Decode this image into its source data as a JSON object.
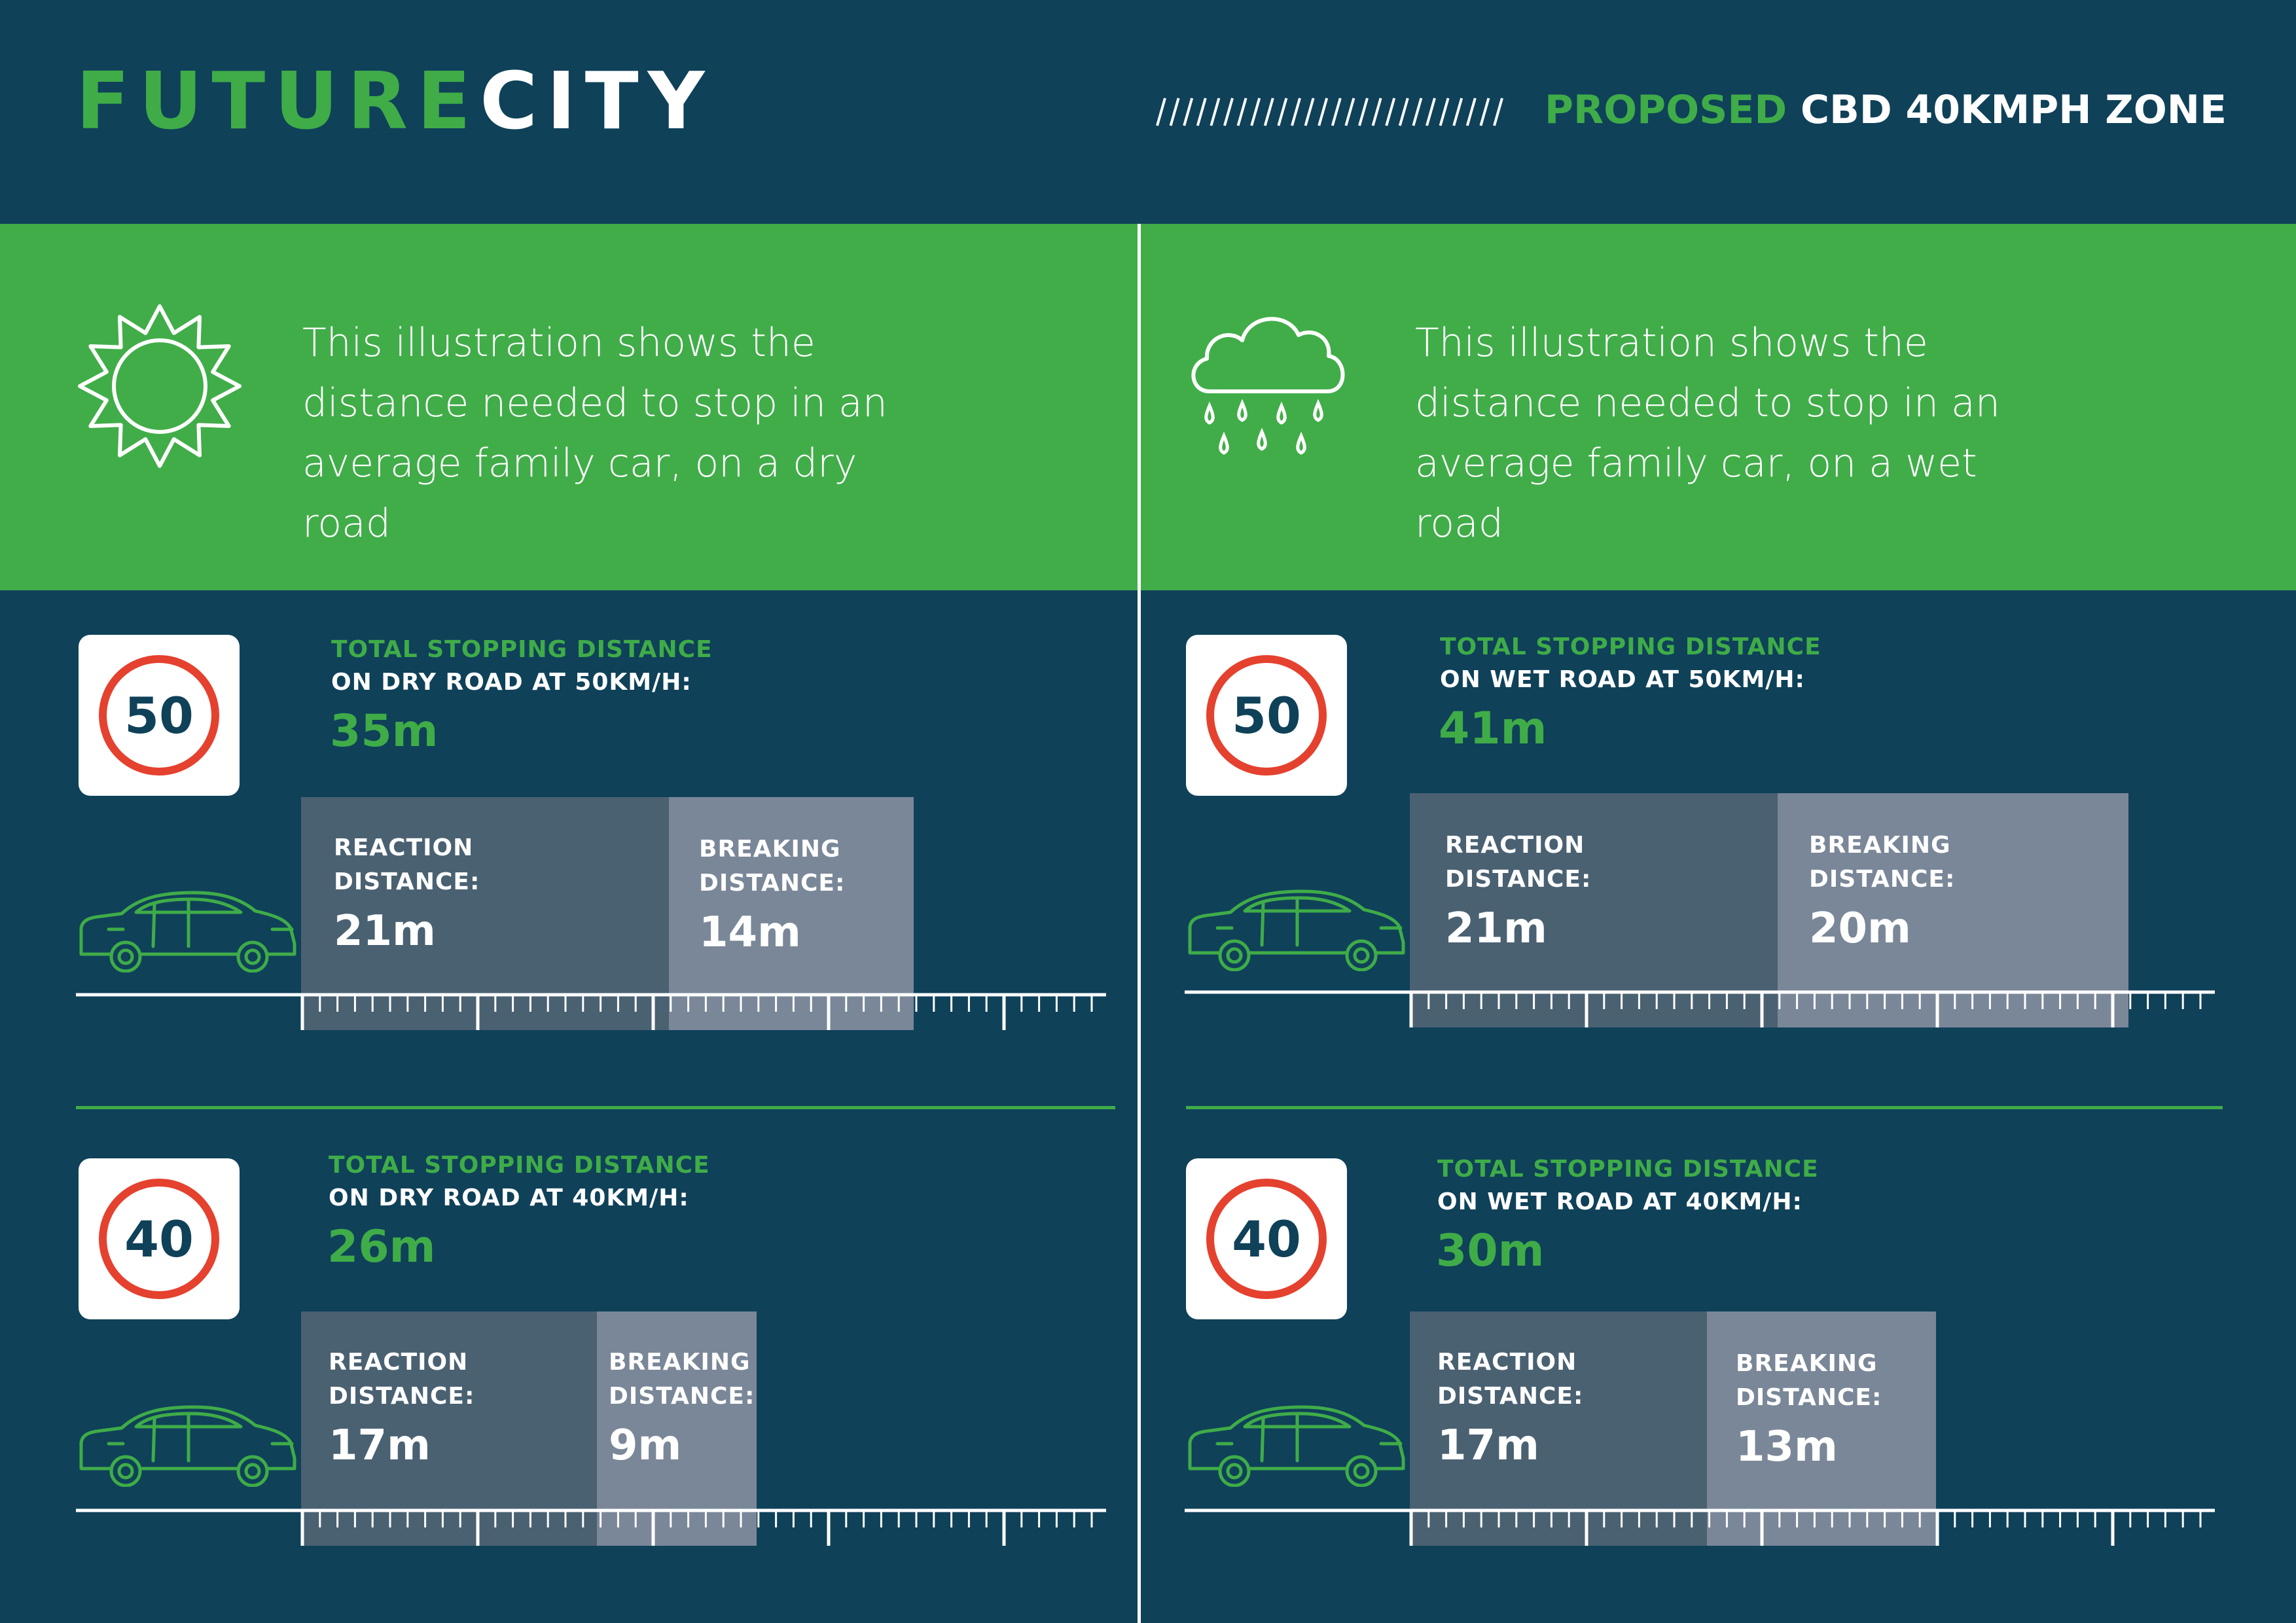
{
  "header": {
    "logo_part1": "FUTURE",
    "logo_part2": "CITY",
    "slashes": "//////////////////////////",
    "zone_highlight": "PROPOSED",
    "zone_rest": " CBD 40KMPH ZONE"
  },
  "colors": {
    "background": "#0f4159",
    "accent_green": "#3fac48",
    "sign_red": "#e5412f",
    "reaction_box": "#4a6172",
    "breaking_box": "#7a8798"
  },
  "dry": {
    "icon": "sun-icon",
    "description": "This illustration shows the distance needed to stop in an average family car, on a dry road",
    "s50": {
      "sign": "50",
      "label_green": "TOTAL STOPPING DISTANCE",
      "label_white": "ON DRY ROAD AT 50KM/H:",
      "total": "35m",
      "reaction_title": "REACTION\nDISTANCE:",
      "reaction_value": "21m",
      "breaking_title": "BREAKING\nDISTANCE:",
      "breaking_value": "14m"
    },
    "s40": {
      "sign": "40",
      "label_green": "TOTAL STOPPING DISTANCE",
      "label_white": "ON DRY ROAD AT 40KM/H:",
      "total": "26m",
      "reaction_title": "REACTION\nDISTANCE:",
      "reaction_value": "17m",
      "breaking_title": "BREAKING\nDISTANCE:",
      "breaking_value": "9m"
    }
  },
  "wet": {
    "icon": "rain-cloud-icon",
    "description": "This illustration shows the distance needed to stop in an average family car, on a wet road",
    "s50": {
      "sign": "50",
      "label_green": "TOTAL STOPPING DISTANCE",
      "label_white": "ON WET ROAD AT 50KM/H:",
      "total": "41m",
      "reaction_title": "REACTION\nDISTANCE:",
      "reaction_value": "21m",
      "breaking_title": "BREAKING\nDISTANCE:",
      "breaking_value": "20m"
    },
    "s40": {
      "sign": "40",
      "label_green": "TOTAL STOPPING DISTANCE",
      "label_white": "ON WET ROAD AT 40KM/H:",
      "total": "30m",
      "reaction_title": "REACTION\nDISTANCE:",
      "reaction_value": "17m",
      "breaking_title": "BREAKING\nDISTANCE:",
      "breaking_value": "13m"
    }
  }
}
